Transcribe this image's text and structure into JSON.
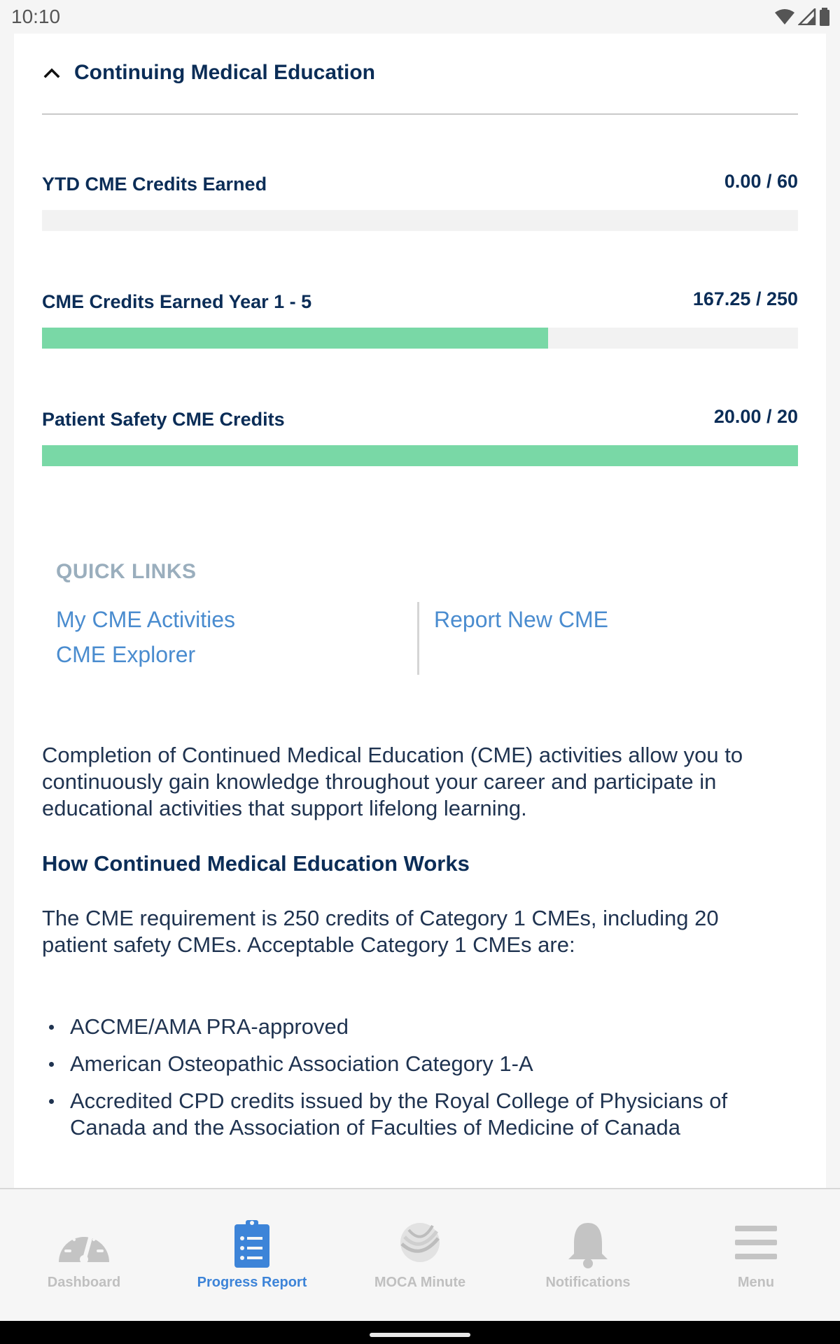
{
  "status_bar": {
    "time": "10:10"
  },
  "section": {
    "title": "Continuing Medical Education"
  },
  "metrics": [
    {
      "label": "YTD CME Credits Earned",
      "value": "0.00 / 60",
      "progress": 0.0
    },
    {
      "label": "CME Credits Earned Year 1 - 5",
      "value": "167.25 / 250",
      "progress": 0.669
    },
    {
      "label": "Patient Safety CME Credits",
      "value": "20.00 / 20",
      "progress": 1.0
    }
  ],
  "quick_links": {
    "title": "QUICK LINKS",
    "left": [
      "My CME Activities",
      "CME Explorer"
    ],
    "right": [
      "Report New CME"
    ]
  },
  "content": {
    "intro": "Completion of Continued Medical Education (CME) activities allow you to continuously gain knowledge throughout your career and participate in educational activities that support lifelong learning.",
    "heading": "How Continued Medical Education Works",
    "requirement": "The CME requirement is 250 credits of Category 1 CMEs, including 20 patient safety CMEs. Acceptable Category 1 CMEs are:",
    "bullets": [
      "ACCME/AMA PRA-approved",
      "American Osteopathic Association Category 1-A",
      "Accredited CPD credits issued by the Royal College of Physicians of Canada and the Association of Faculties of Medicine of Canada"
    ]
  },
  "bottom_nav": {
    "items": [
      {
        "label": "Dashboard",
        "icon": "gauge-icon"
      },
      {
        "label": "Progress Report",
        "icon": "clipboard-list-icon",
        "active": true
      },
      {
        "label": "MOCA Minute",
        "icon": "moca-logo-icon"
      },
      {
        "label": "Notifications",
        "icon": "bell-icon"
      },
      {
        "label": "Menu",
        "icon": "hamburger-icon"
      }
    ],
    "active_color": "#3d84d8",
    "inactive_color": "#c0c0c0"
  },
  "colors": {
    "progress_fill": "#79d8a6",
    "navy": "#0b2d57",
    "link": "#4a8ccf"
  }
}
